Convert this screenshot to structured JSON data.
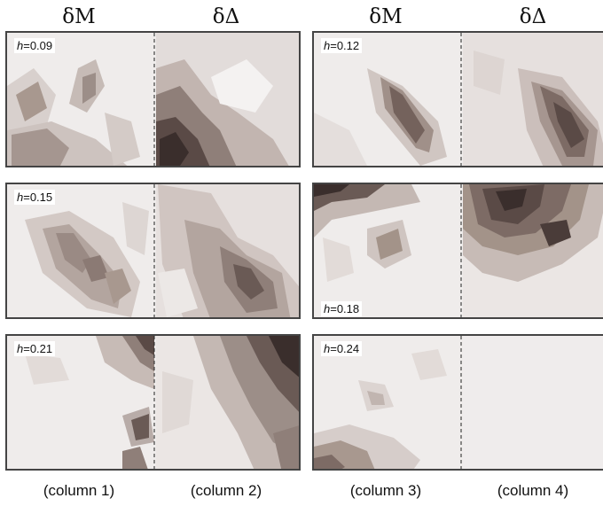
{
  "headers": [
    "δM",
    "δΔ",
    "δM",
    "δΔ"
  ],
  "footers": [
    "(column 1)",
    "(column 2)",
    "(column 3)",
    "(column 4)"
  ],
  "panels": [
    {
      "h_symbol": "h",
      "h_value": "=0.09"
    },
    {
      "h_symbol": "h",
      "h_value": "=0.12"
    },
    {
      "h_symbol": "h",
      "h_value": "=0.15"
    },
    {
      "h_symbol": "h",
      "h_value": "=0.18"
    },
    {
      "h_symbol": "h",
      "h_value": "=0.21"
    },
    {
      "h_symbol": "h",
      "h_value": "=0.24"
    }
  ],
  "colors": {
    "background_light": "#efeceb",
    "mid": "#b8aca8",
    "dark": "#3a2e2c",
    "frame": "#444444"
  }
}
